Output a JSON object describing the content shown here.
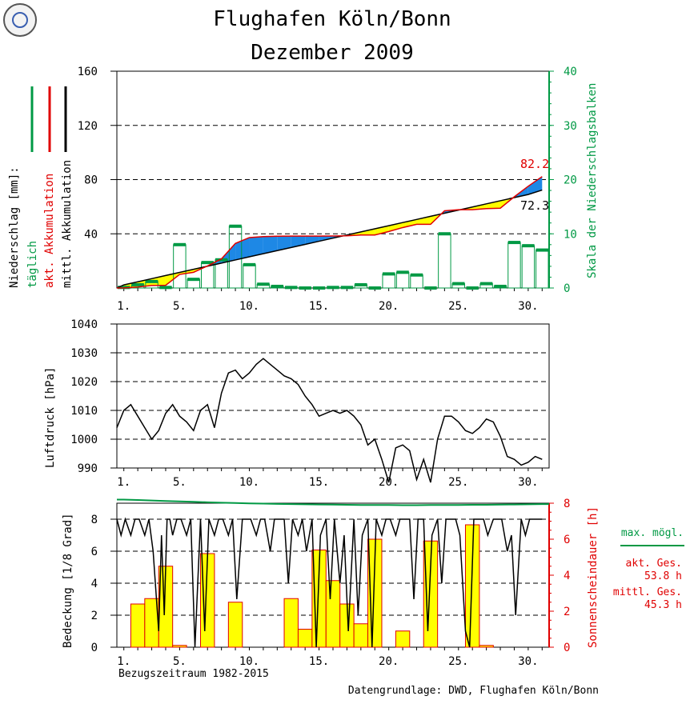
{
  "header": {
    "title": "Flughafen Köln/Bonn",
    "subtitle": "Dezember  2009"
  },
  "footer": {
    "reference": "Bezugszeitraum 1982-2015",
    "source": "Datengrundlage: DWD, Flughafen Köln/Bonn"
  },
  "colors": {
    "green": "#009944",
    "red": "#e00000",
    "blue": "#1e88e5",
    "yellow": "#ffff00",
    "black": "#000000"
  },
  "chart_data": [
    {
      "type": "bar",
      "name": "precipitation",
      "ylabel_left": [
        "Niederschlag [mm]:",
        "täglich",
        "akt. Akkumulation",
        "mittl. Akkumulation"
      ],
      "ylabel_right": "Skala der Niederschlagsbalken",
      "ylim_left": [
        0,
        160
      ],
      "yticks_left": [
        "40",
        "80",
        "120",
        "160"
      ],
      "ylim_right": [
        0,
        40
      ],
      "yticks_right": [
        "0",
        "10",
        "20",
        "30",
        "40"
      ],
      "xticks": [
        "1.",
        "5.",
        "10.",
        "15.",
        "20.",
        "25.",
        "30."
      ],
      "days": [
        1,
        2,
        3,
        4,
        5,
        6,
        7,
        8,
        9,
        10,
        11,
        12,
        13,
        14,
        15,
        16,
        17,
        18,
        19,
        20,
        21,
        22,
        23,
        24,
        25,
        26,
        27,
        28,
        29,
        30,
        31
      ],
      "daily_mm": [
        0.1,
        0.6,
        1.2,
        0.1,
        8.0,
        1.6,
        4.7,
        5.2,
        11.4,
        4.3,
        0.7,
        0.3,
        0.1,
        0.0,
        0.0,
        0.1,
        0.1,
        0.6,
        0.0,
        2.6,
        2.9,
        2.4,
        0.0,
        10.0,
        0.8,
        0.0,
        0.8,
        0.3,
        8.4,
        7.8,
        7.0
      ],
      "actual_accumulation": [
        0.1,
        0.7,
        1.9,
        2.0,
        10.0,
        11.6,
        16.3,
        21.5,
        32.9,
        37.2,
        37.9,
        38.2,
        38.3,
        38.3,
        38.3,
        38.4,
        38.5,
        39.1,
        39.1,
        41.7,
        44.6,
        47.0,
        47.0,
        57.0,
        57.8,
        57.8,
        58.6,
        58.9,
        67.3,
        75.1,
        82.2
      ],
      "mean_accumulation": [
        2.3,
        4.6,
        6.9,
        9.2,
        11.5,
        13.8,
        16.1,
        18.4,
        20.7,
        23.0,
        25.3,
        27.6,
        29.9,
        32.2,
        34.5,
        36.8,
        39.1,
        41.4,
        43.7,
        46.0,
        48.3,
        50.6,
        52.9,
        55.2,
        57.5,
        59.8,
        62.1,
        64.4,
        66.7,
        69.0,
        72.3
      ],
      "annotations": [
        "82.2",
        "72.3"
      ],
      "series": [
        {
          "name": "täglich",
          "color": "#009944"
        },
        {
          "name": "akt. Akkumulation",
          "color": "#e00000"
        },
        {
          "name": "mittl. Akkumulation",
          "color": "#000000"
        }
      ]
    },
    {
      "type": "line",
      "name": "pressure",
      "ylabel": "Luftdruck [hPa]",
      "ylim": [
        990,
        1040
      ],
      "yticks": [
        "990",
        "1000",
        "1010",
        "1020",
        "1030",
        "1040"
      ],
      "xticks": [
        "1.",
        "5.",
        "10.",
        "15.",
        "20.",
        "25.",
        "30."
      ],
      "x_day": [
        1.0,
        1.5,
        2.0,
        2.5,
        3.0,
        3.5,
        4.0,
        4.5,
        5.0,
        5.5,
        6.0,
        6.5,
        7.0,
        7.5,
        8.0,
        8.5,
        9.0,
        9.5,
        10.0,
        10.5,
        11.0,
        11.5,
        12.0,
        12.5,
        13.0,
        13.5,
        14.0,
        14.5,
        15.0,
        15.5,
        16.0,
        16.5,
        17.0,
        17.5,
        18.0,
        18.5,
        19.0,
        19.5,
        20.0,
        20.5,
        21.0,
        21.5,
        22.0,
        22.5,
        23.0,
        23.5,
        24.0,
        24.5,
        25.0,
        25.5,
        26.0,
        26.5,
        27.0,
        27.5,
        28.0,
        28.5,
        29.0,
        29.5,
        30.0,
        30.5,
        31.0,
        31.5
      ],
      "y": [
        1004,
        1010,
        1012,
        1008,
        1004,
        1000,
        1003,
        1009,
        1012,
        1008,
        1006,
        1003,
        1010,
        1012,
        1004,
        1016,
        1023,
        1024,
        1021,
        1023,
        1026,
        1028,
        1026,
        1024,
        1022,
        1021,
        1019,
        1015,
        1012,
        1008,
        1009,
        1010,
        1009,
        1010,
        1008,
        1005,
        998,
        1000,
        993,
        985,
        997,
        998,
        996,
        986,
        993,
        985,
        1000,
        1008,
        1008,
        1006,
        1003,
        1002,
        1004,
        1007,
        1006,
        1001,
        994,
        993,
        991,
        992,
        994,
        993
      ]
    },
    {
      "type": "bar",
      "name": "sunshine-cloud",
      "ylabel_left": "Bedeckung [1/8 Grad]",
      "ylabel_right": "Sonnenscheindauer [h]",
      "ylim_left": [
        0,
        8
      ],
      "yticks_left": [
        "0",
        "2",
        "4",
        "6",
        "8"
      ],
      "ylim_right": [
        0,
        8
      ],
      "yticks_right": [
        "0",
        "2",
        "4",
        "6",
        "8"
      ],
      "xticks": [
        "1.",
        "5.",
        "10.",
        "15.",
        "20.",
        "25.",
        "30."
      ],
      "days": [
        1,
        2,
        3,
        4,
        5,
        6,
        7,
        8,
        9,
        10,
        11,
        12,
        13,
        14,
        15,
        16,
        17,
        18,
        19,
        20,
        21,
        22,
        23,
        24,
        25,
        26,
        27,
        28,
        29,
        30,
        31
      ],
      "sunshine_h": [
        0.0,
        2.4,
        2.7,
        4.5,
        0.1,
        0.0,
        5.2,
        0.0,
        2.5,
        0.0,
        0.0,
        0.0,
        2.7,
        1.0,
        5.4,
        3.7,
        2.4,
        1.3,
        6.0,
        0.0,
        0.9,
        0.0,
        5.9,
        0.0,
        0.0,
        6.8,
        0.1,
        0.0,
        0.0,
        0.0,
        0.0
      ],
      "max_possible_h": [
        8.2,
        8.18,
        8.15,
        8.12,
        8.1,
        8.08,
        8.05,
        8.03,
        8.01,
        7.99,
        7.98,
        7.96,
        7.95,
        7.94,
        7.93,
        7.92,
        7.91,
        7.9,
        7.9,
        7.9,
        7.89,
        7.89,
        7.9,
        7.9,
        7.9,
        7.91,
        7.91,
        7.92,
        7.93,
        7.94,
        7.95
      ],
      "cloud_x_day": [
        1.0,
        1.3,
        1.6,
        2.0,
        2.3,
        2.6,
        3.0,
        3.3,
        3.6,
        4.0,
        4.2,
        4.4,
        4.6,
        4.8,
        5.0,
        5.3,
        5.6,
        6.0,
        6.3,
        6.6,
        7.0,
        7.3,
        7.6,
        8.0,
        8.3,
        8.6,
        9.0,
        9.3,
        9.6,
        10.0,
        10.3,
        10.6,
        11.0,
        11.3,
        11.6,
        12.0,
        12.3,
        12.6,
        13.0,
        13.3,
        13.6,
        14.0,
        14.3,
        14.6,
        15.0,
        15.3,
        15.6,
        16.0,
        16.3,
        16.6,
        17.0,
        17.3,
        17.6,
        18.0,
        18.3,
        18.6,
        19.0,
        19.3,
        19.6,
        20.0,
        20.3,
        20.6,
        21.0,
        21.3,
        21.6,
        22.0,
        22.3,
        22.6,
        23.0,
        23.3,
        23.6,
        24.0,
        24.3,
        24.6,
        25.0,
        25.3,
        25.6,
        26.0,
        26.3,
        26.6,
        27.0,
        27.3,
        27.6,
        28.0,
        28.3,
        28.6,
        29.0,
        29.3,
        29.6,
        30.0,
        30.3,
        30.6,
        31.0,
        31.5
      ],
      "cloud_octa": [
        8,
        7,
        8,
        7,
        8,
        8,
        7,
        8,
        6,
        1,
        7,
        2,
        8,
        8,
        7,
        8,
        8,
        7,
        8,
        0,
        8,
        1,
        8,
        7,
        8,
        8,
        7,
        8,
        3,
        8,
        8,
        8,
        7,
        8,
        8,
        6,
        8,
        8,
        8,
        4,
        8,
        7,
        8,
        6,
        8,
        0,
        7,
        8,
        3,
        8,
        4,
        7,
        1,
        8,
        2,
        7,
        8,
        0,
        8,
        7,
        8,
        8,
        7,
        8,
        8,
        8,
        3,
        8,
        8,
        1,
        7,
        8,
        4,
        8,
        8,
        8,
        7,
        1,
        0,
        8,
        8,
        8,
        7,
        8,
        8,
        8,
        6,
        7,
        2,
        8,
        7,
        8,
        8,
        8
      ],
      "legend": {
        "max_label": "max. mögl.",
        "act_label": "akt. Ges.",
        "act_value": "53.8  h",
        "mean_label": "mittl. Ges.",
        "mean_value": "45.3  h"
      }
    }
  ]
}
